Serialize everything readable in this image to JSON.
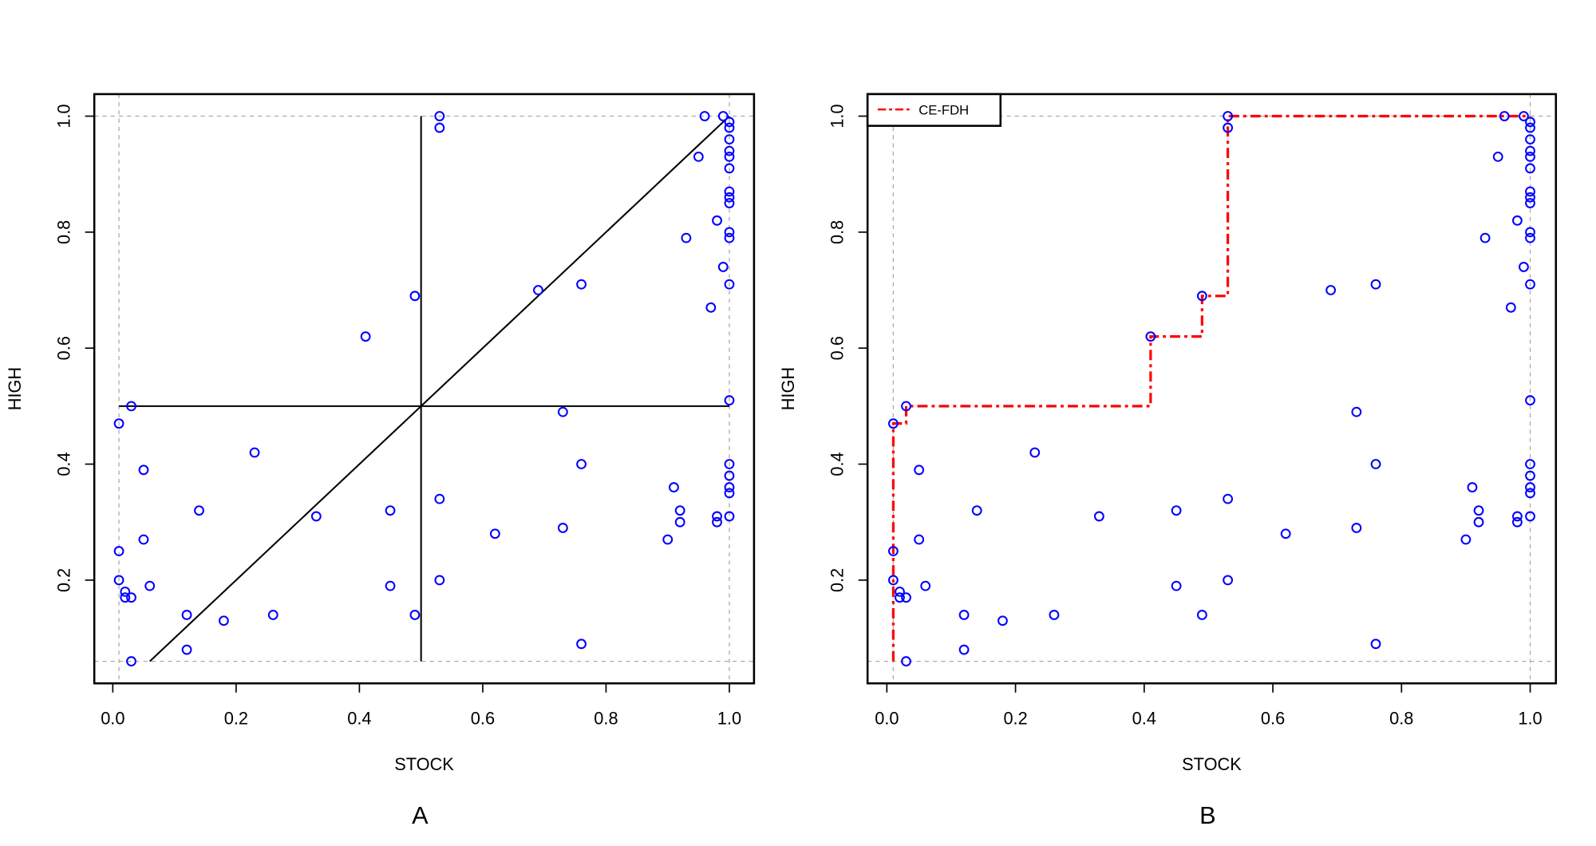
{
  "chart_data": [
    {
      "panel_label": "A",
      "type": "scatter",
      "xlabel": "STOCK",
      "ylabel": "HIGH",
      "xlim": [
        -0.03,
        1.04
      ],
      "ylim": [
        0.022,
        1.038
      ],
      "xticks": [
        "0.0",
        "0.2",
        "0.4",
        "0.6",
        "0.8",
        "1.0"
      ],
      "yticks": [
        "0.2",
        "0.4",
        "0.6",
        "0.8",
        "1.0"
      ],
      "point_color": "#0000ff",
      "reference_lines": {
        "color": "#aaaaaa",
        "style": "dashed",
        "x": [
          0.01,
          1.0
        ],
        "y": [
          0.06,
          1.0
        ]
      },
      "lines": [
        {
          "color": "#000000",
          "points": [
            [
              0.06,
              0.06
            ],
            [
              1.0,
              1.0
            ]
          ]
        },
        {
          "color": "#000000",
          "points": [
            [
              0.01,
              0.5
            ],
            [
              1.0,
              0.5
            ]
          ]
        },
        {
          "color": "#000000",
          "points": [
            [
              0.5,
              0.06
            ],
            [
              0.5,
              1.0
            ]
          ]
        }
      ]
    },
    {
      "panel_label": "B",
      "type": "scatter",
      "xlabel": "STOCK",
      "ylabel": "HIGH",
      "xlim": [
        -0.03,
        1.04
      ],
      "ylim": [
        0.022,
        1.038
      ],
      "xticks": [
        "0.0",
        "0.2",
        "0.4",
        "0.6",
        "0.8",
        "1.0"
      ],
      "yticks": [
        "0.2",
        "0.4",
        "0.6",
        "0.8",
        "1.0"
      ],
      "point_color": "#0000ff",
      "reference_lines": {
        "color": "#aaaaaa",
        "style": "dashed",
        "x": [
          0.01,
          1.0
        ],
        "y": [
          0.06,
          1.0
        ]
      },
      "legend": {
        "position": "top-left",
        "entries": [
          "CE-FDH"
        ]
      },
      "lines": [
        {
          "name": "CE-FDH",
          "color": "#ff0000",
          "style": "dash-dot",
          "points": [
            [
              0.01,
              0.06
            ],
            [
              0.01,
              0.47
            ],
            [
              0.03,
              0.47
            ],
            [
              0.03,
              0.5
            ],
            [
              0.41,
              0.5
            ],
            [
              0.41,
              0.62
            ],
            [
              0.49,
              0.62
            ],
            [
              0.49,
              0.69
            ],
            [
              0.53,
              0.69
            ],
            [
              0.53,
              1.0
            ],
            [
              1.0,
              1.0
            ]
          ]
        }
      ]
    }
  ],
  "points": [
    [
      1.0,
      0.99
    ],
    [
      1.0,
      0.98
    ],
    [
      1.0,
      0.96
    ],
    [
      1.0,
      0.94
    ],
    [
      1.0,
      0.93
    ],
    [
      1.0,
      0.91
    ],
    [
      1.0,
      0.87
    ],
    [
      1.0,
      0.86
    ],
    [
      1.0,
      0.85
    ],
    [
      1.0,
      0.8
    ],
    [
      1.0,
      0.79
    ],
    [
      1.0,
      0.71
    ],
    [
      1.0,
      0.51
    ],
    [
      1.0,
      0.4
    ],
    [
      1.0,
      0.38
    ],
    [
      1.0,
      0.36
    ],
    [
      1.0,
      0.35
    ],
    [
      1.0,
      0.31
    ],
    [
      0.99,
      1.0
    ],
    [
      0.96,
      1.0
    ],
    [
      0.95,
      0.93
    ],
    [
      0.98,
      0.82
    ],
    [
      0.93,
      0.79
    ],
    [
      0.99,
      0.74
    ],
    [
      0.97,
      0.67
    ],
    [
      0.69,
      0.7
    ],
    [
      0.76,
      0.71
    ],
    [
      0.49,
      0.69
    ],
    [
      0.41,
      0.62
    ],
    [
      0.53,
      1.0
    ],
    [
      0.53,
      0.98
    ],
    [
      0.01,
      0.47
    ],
    [
      0.03,
      0.5
    ],
    [
      0.73,
      0.49
    ],
    [
      0.23,
      0.42
    ],
    [
      0.76,
      0.4
    ],
    [
      0.05,
      0.39
    ],
    [
      0.91,
      0.36
    ],
    [
      0.53,
      0.34
    ],
    [
      0.14,
      0.32
    ],
    [
      0.45,
      0.32
    ],
    [
      0.92,
      0.32
    ],
    [
      0.33,
      0.31
    ],
    [
      0.98,
      0.31
    ],
    [
      0.92,
      0.3
    ],
    [
      0.98,
      0.3
    ],
    [
      0.73,
      0.29
    ],
    [
      0.62,
      0.28
    ],
    [
      0.05,
      0.27
    ],
    [
      0.9,
      0.27
    ],
    [
      0.01,
      0.25
    ],
    [
      0.01,
      0.2
    ],
    [
      0.53,
      0.2
    ],
    [
      0.06,
      0.19
    ],
    [
      0.45,
      0.19
    ],
    [
      0.02,
      0.18
    ],
    [
      0.02,
      0.17
    ],
    [
      0.03,
      0.17
    ],
    [
      0.12,
      0.14
    ],
    [
      0.26,
      0.14
    ],
    [
      0.49,
      0.14
    ],
    [
      0.18,
      0.13
    ],
    [
      0.12,
      0.08
    ],
    [
      0.76,
      0.09
    ],
    [
      0.03,
      0.06
    ]
  ]
}
